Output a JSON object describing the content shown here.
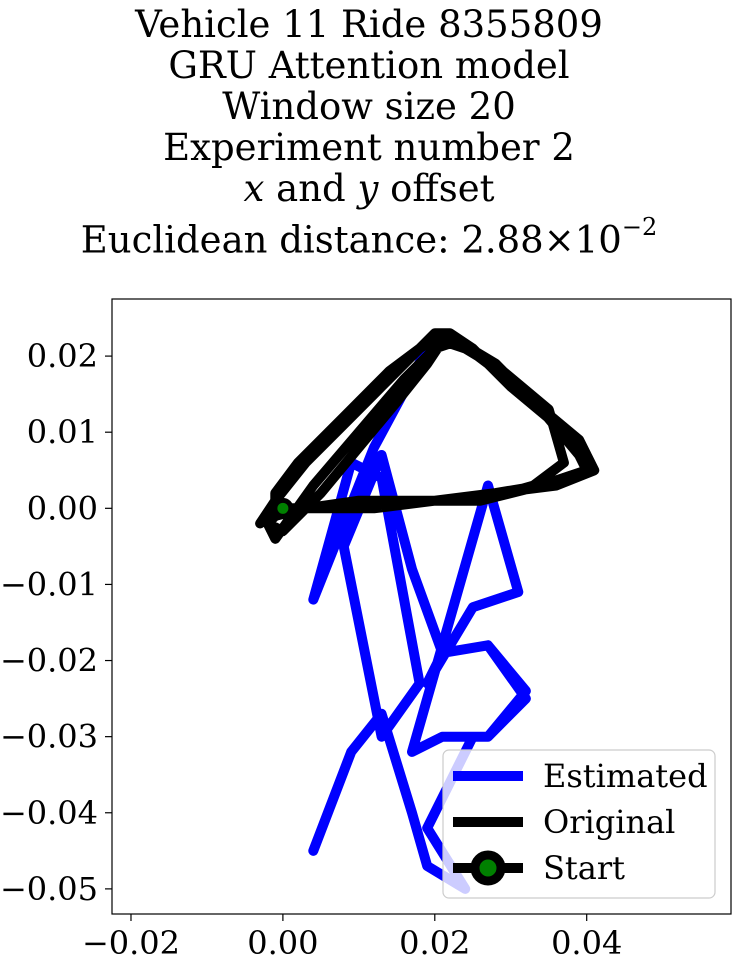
{
  "chart_data": {
    "type": "line",
    "title_lines": [
      "Vehicle 11 Ride 8355809",
      "GRU Attention model",
      "Window size 20",
      "Experiment number 2"
    ],
    "title_offset_parts": {
      "var_x": "x",
      "and": "and",
      "var_y": "y",
      "suffix": "offset"
    },
    "title_distance_parts": {
      "prefix": "Euclidean distance: 2.88",
      "times": "×",
      "base": "10",
      "exponent": "−2"
    },
    "xlim": [
      -0.0225,
      0.059
    ],
    "ylim": [
      -0.0533,
      0.0275
    ],
    "x_ticks": [
      -0.02,
      0.0,
      0.02,
      0.04
    ],
    "x_tick_labels": [
      "−0.02",
      "0.00",
      "0.02",
      "0.04"
    ],
    "y_ticks": [
      0.02,
      0.01,
      0.0,
      -0.01,
      -0.02,
      -0.03,
      -0.04,
      -0.05
    ],
    "y_tick_labels": [
      "0.02",
      "0.01",
      "0.00",
      "−0.01",
      "−0.02",
      "−0.03",
      "−0.04",
      "−0.05"
    ],
    "grid": false,
    "legend_placement": "lower-right",
    "series": [
      {
        "name": "Estimated",
        "color": "#0000ff",
        "x": [
          0.004,
          0.009,
          0.013,
          0.017,
          0.019,
          0.024,
          0.019,
          0.025,
          0.027,
          0.032,
          0.027,
          0.021,
          0.019,
          0.022,
          0.025,
          0.031,
          0.027,
          0.017,
          0.021,
          0.027,
          0.032,
          0.027,
          0.021,
          0.017,
          0.013,
          0.008,
          0.013,
          0.018,
          0.013,
          0.009,
          0.004,
          0.012,
          0.019
        ],
        "y": [
          -0.045,
          -0.032,
          -0.027,
          -0.04,
          -0.047,
          -0.05,
          -0.042,
          -0.03,
          -0.03,
          -0.025,
          -0.018,
          -0.019,
          -0.023,
          -0.018,
          -0.013,
          -0.011,
          0.003,
          -0.032,
          -0.03,
          -0.03,
          -0.024,
          -0.018,
          -0.019,
          -0.008,
          0.007,
          -0.005,
          -0.03,
          -0.023,
          0.004,
          0.006,
          -0.012,
          0.008,
          0.021
        ]
      },
      {
        "name": "Original",
        "color": "#000000",
        "x": [
          0.0,
          -0.002,
          -0.001,
          0.004,
          0.01,
          0.016,
          0.02,
          0.023,
          0.028,
          0.034,
          0.039,
          0.04,
          0.034,
          0.026,
          0.018,
          0.01,
          0.003,
          -0.002,
          -0.003,
          -0.001,
          0.003,
          0.008,
          0.013,
          0.017,
          0.02,
          0.022,
          0.025,
          0.03,
          0.036,
          0.04,
          0.04,
          0.034,
          0.028,
          0.02,
          0.012,
          0.005,
          0.0,
          -0.002,
          0.0,
          0.005,
          0.01,
          0.015,
          0.019,
          0.021,
          0.024,
          0.029,
          0.035,
          0.037,
          0.033,
          0.026,
          0.017,
          0.009,
          0.003,
          -0.001,
          -0.001,
          0.002,
          0.008,
          0.014,
          0.018,
          0.021,
          0.023,
          0.027,
          0.033,
          0.039,
          0.041,
          0.036,
          0.028,
          0.02,
          0.012,
          0.006,
          0.001,
          -0.001
        ],
        "y": [
          0.0,
          -0.002,
          -0.004,
          0.003,
          0.01,
          0.017,
          0.021,
          0.022,
          0.019,
          0.013,
          0.007,
          0.005,
          0.003,
          0.001,
          0.001,
          0.001,
          0.0,
          -0.001,
          -0.002,
          0.001,
          0.006,
          0.011,
          0.016,
          0.02,
          0.023,
          0.023,
          0.021,
          0.016,
          0.011,
          0.007,
          0.005,
          0.003,
          0.002,
          0.001,
          0.001,
          0.0,
          0.0,
          -0.002,
          -0.003,
          0.002,
          0.008,
          0.014,
          0.019,
          0.022,
          0.021,
          0.018,
          0.013,
          0.006,
          0.003,
          0.001,
          0.001,
          0.0,
          0.0,
          -0.001,
          0.002,
          0.006,
          0.012,
          0.018,
          0.021,
          0.023,
          0.022,
          0.019,
          0.014,
          0.009,
          0.005,
          0.003,
          0.002,
          0.001,
          0.0,
          0.0,
          0.0,
          0.001
        ]
      },
      {
        "name": "Start",
        "type": "marker",
        "line_color": "#000000",
        "marker_face": "#008000",
        "x": [
          0.0
        ],
        "y": [
          0.0
        ]
      }
    ]
  }
}
